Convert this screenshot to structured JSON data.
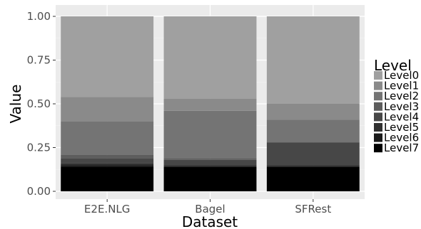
{
  "chart_data": {
    "type": "bar",
    "stacked": true,
    "normalized": true,
    "title": "",
    "xlabel": "Dataset",
    "ylabel": "Value",
    "ylim": [
      0,
      1
    ],
    "yticks": [
      "0.00",
      "0.25",
      "0.50",
      "0.75",
      "1.00"
    ],
    "ytick_values": [
      0,
      0.25,
      0.5,
      0.75,
      1.0
    ],
    "categories": [
      "E2E.NLG",
      "Bagel",
      "SFRest"
    ],
    "grid": true,
    "panel_background": "#ebebeb",
    "legend": {
      "title": "Level",
      "position": "right"
    },
    "series": [
      {
        "name": "Level0",
        "color": "#a0a0a0",
        "values": [
          0.46,
          0.47,
          0.5
        ]
      },
      {
        "name": "Level1",
        "color": "#8a8a8a",
        "values": [
          0.14,
          0.07,
          0.09
        ]
      },
      {
        "name": "Level2",
        "color": "#747474",
        "values": [
          0.19,
          0.27,
          0.13
        ]
      },
      {
        "name": "Level3",
        "color": "#5d5d5d",
        "values": [
          0.02,
          0.01,
          0.0
        ]
      },
      {
        "name": "Level4",
        "color": "#474747",
        "values": [
          0.03,
          0.03,
          0.13
        ]
      },
      {
        "name": "Level5",
        "color": "#303030",
        "values": [
          0.01,
          0.01,
          0.01
        ]
      },
      {
        "name": "Level6",
        "color": "#1a1a1a",
        "values": [
          0.01,
          0.0,
          0.0
        ]
      },
      {
        "name": "Level7",
        "color": "#000000",
        "values": [
          0.14,
          0.14,
          0.14
        ]
      }
    ]
  }
}
